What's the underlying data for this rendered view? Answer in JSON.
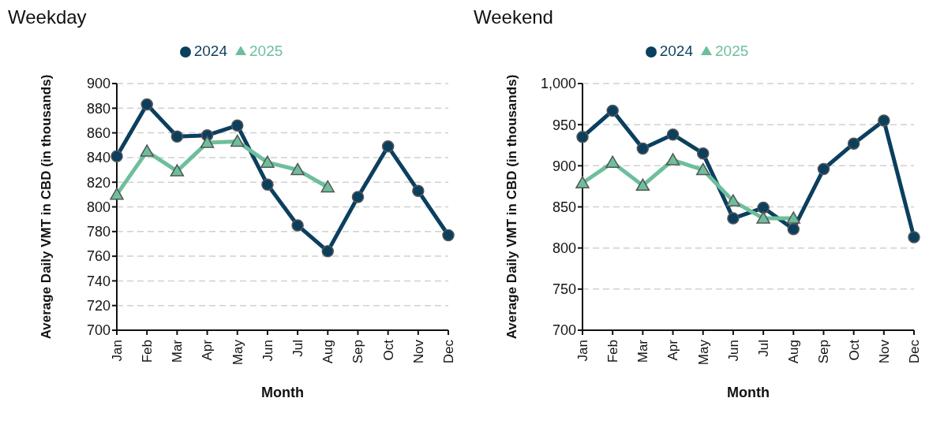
{
  "chart_data": [
    {
      "type": "line",
      "title": "Weekday",
      "xlabel": "Month",
      "ylabel": "Average Daily VMT in CBD (in thousands)",
      "categories": [
        "Jan",
        "Feb",
        "Mar",
        "Apr",
        "May",
        "Jun",
        "Jul",
        "Aug",
        "Sep",
        "Oct",
        "Nov",
        "Dec"
      ],
      "series": [
        {
          "name": "2024",
          "color": "#0b3f5e",
          "marker": "circle",
          "values": [
            841,
            883,
            857,
            858,
            866,
            818,
            785,
            764,
            808,
            849,
            813,
            777
          ]
        },
        {
          "name": "2025",
          "color": "#6dbf9c",
          "marker": "triangle",
          "values": [
            810,
            845,
            829,
            852,
            853,
            836,
            830,
            816,
            null,
            null,
            null,
            null
          ]
        }
      ],
      "ylim": [
        700,
        900
      ],
      "yticks": [
        700,
        720,
        740,
        760,
        780,
        800,
        820,
        840,
        860,
        880,
        900
      ],
      "grid": "y",
      "legend": "top",
      "line_style": "solid"
    },
    {
      "type": "line",
      "title": "Weekend",
      "xlabel": "Month",
      "ylabel": "Average Daily VMT in CBD (in thousands)",
      "categories": [
        "Jan",
        "Feb",
        "Mar",
        "Apr",
        "May",
        "Jun",
        "Jul",
        "Aug",
        "Sep",
        "Oct",
        "Nov",
        "Dec"
      ],
      "series": [
        {
          "name": "2024",
          "color": "#0b3f5e",
          "marker": "circle",
          "values": [
            935,
            967,
            921,
            938,
            915,
            836,
            849,
            823,
            896,
            927,
            955,
            813
          ]
        },
        {
          "name": "2025",
          "color": "#6dbf9c",
          "marker": "triangle",
          "values": [
            879,
            904,
            876,
            907,
            895,
            857,
            836,
            836,
            null,
            null,
            null,
            null
          ]
        }
      ],
      "ylim": [
        700,
        1000
      ],
      "yticks": [
        700,
        750,
        800,
        850,
        900,
        950,
        {
          "value": 1000,
          "label": "1,000"
        }
      ],
      "grid": "y",
      "legend": "top",
      "line_style": "solid"
    }
  ]
}
